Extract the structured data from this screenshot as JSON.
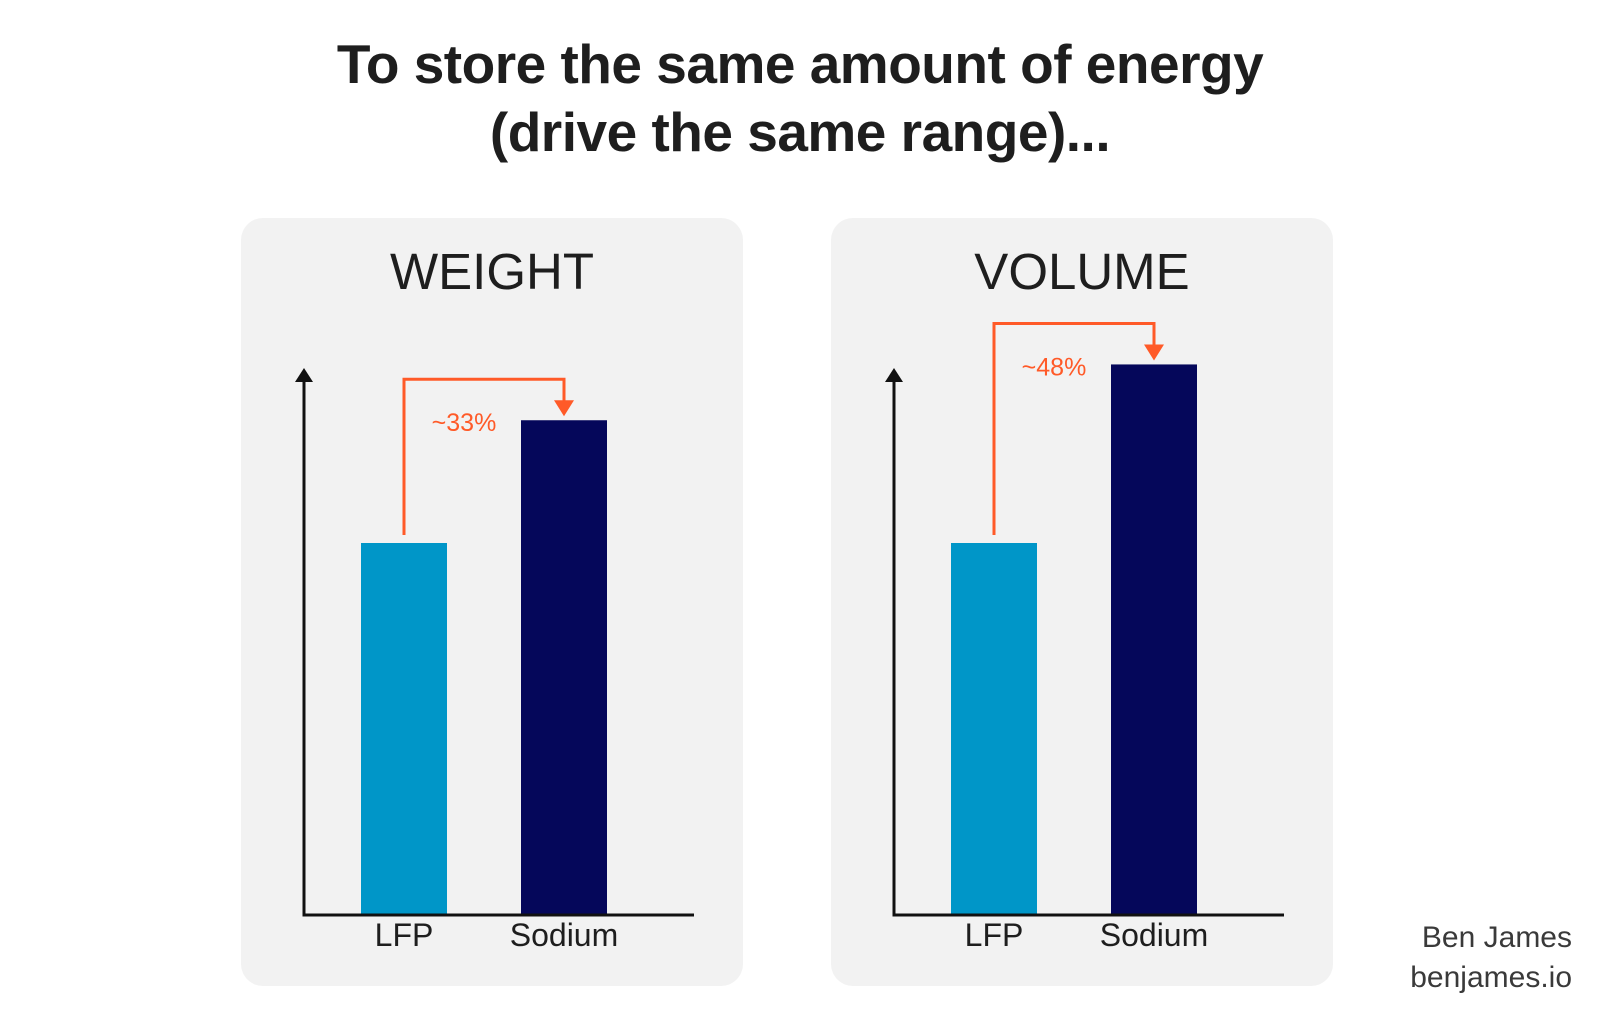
{
  "title": {
    "line1": "To store the same amount of energy",
    "line2": "(drive the same range)..."
  },
  "colors": {
    "lfp": "#0096c8",
    "sodium": "#05075a",
    "annotation": "#ff5a28",
    "axis": "#111111",
    "panel_bg": "#f2f2f2"
  },
  "chart_data": [
    {
      "type": "bar",
      "title": "WEIGHT",
      "categories": [
        "LFP",
        "Sodium"
      ],
      "values": [
        100,
        133
      ],
      "ylim": [
        0,
        140
      ],
      "grid": false,
      "annotation": "~33%"
    },
    {
      "type": "bar",
      "title": "VOLUME",
      "categories": [
        "LFP",
        "Sodium"
      ],
      "values": [
        100,
        148
      ],
      "ylim": [
        0,
        150
      ],
      "grid": false,
      "annotation": "~48%"
    }
  ],
  "credit": {
    "name": "Ben James",
    "site": "benjames.io"
  }
}
